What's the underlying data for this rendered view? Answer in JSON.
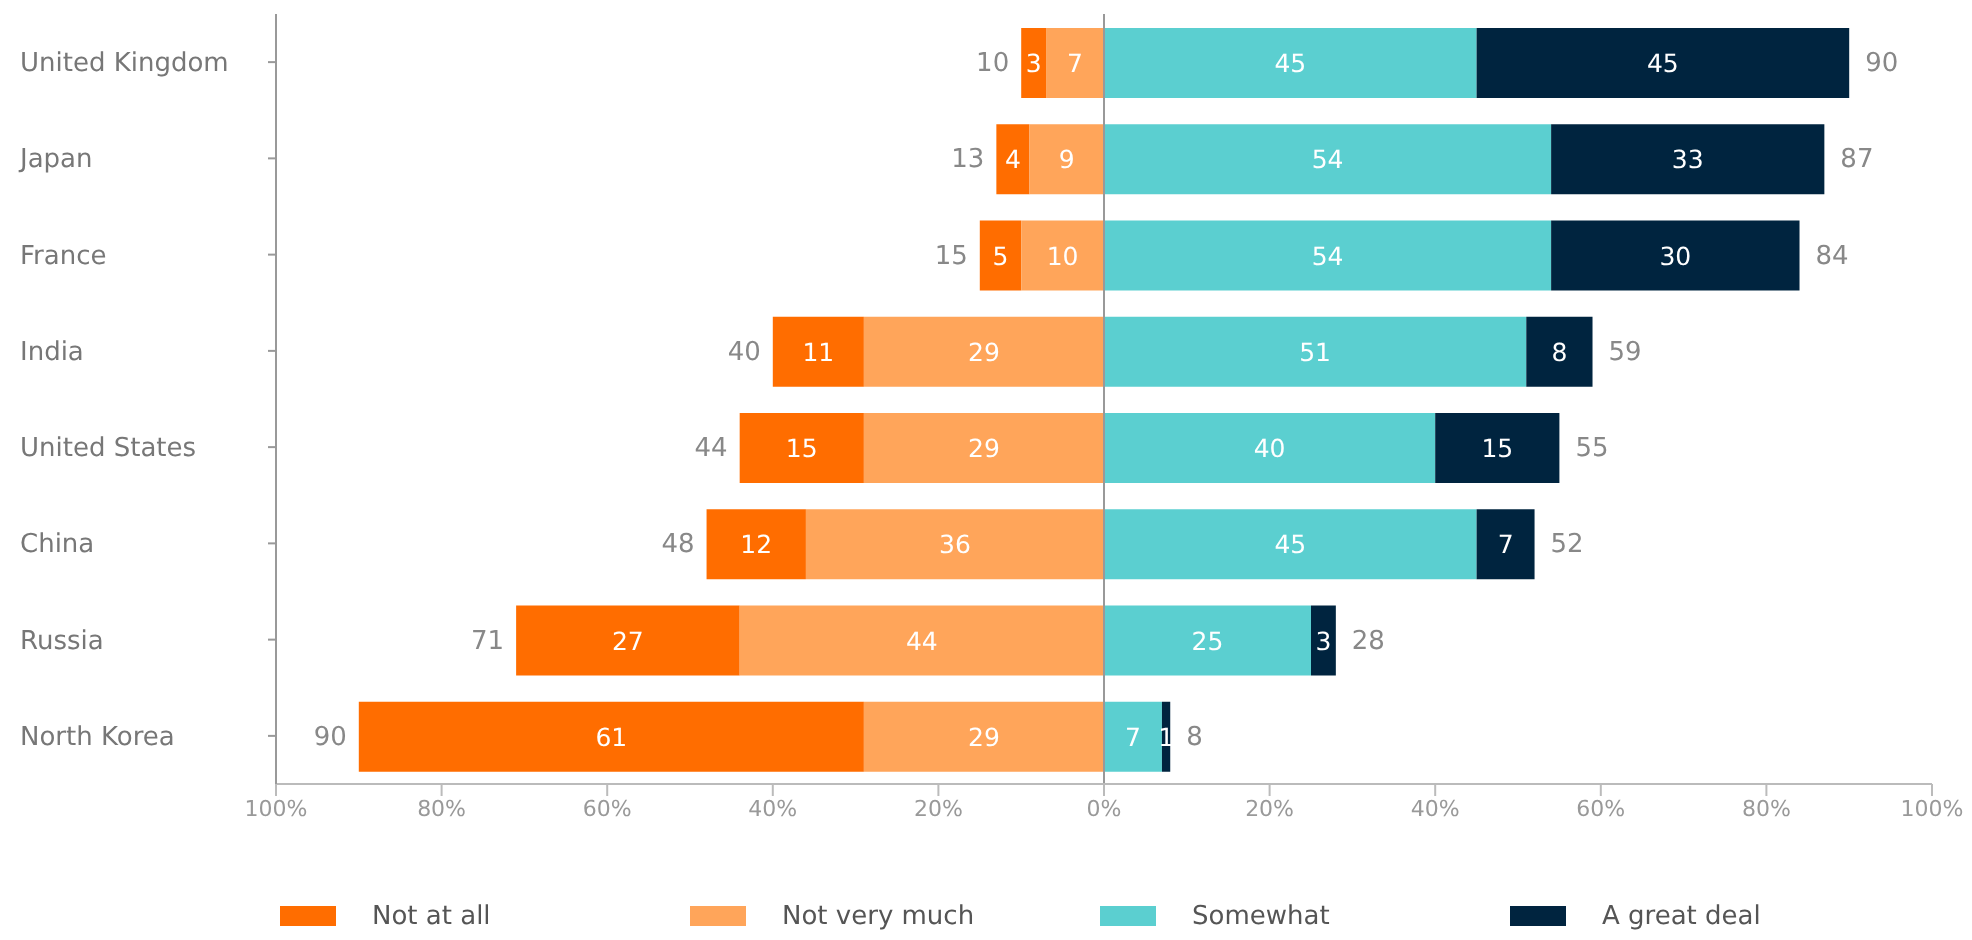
{
  "chart_data": {
    "type": "bar",
    "orientation": "horizontal",
    "categories": [
      "United Kingdom",
      "Japan",
      "France",
      "India",
      "United States",
      "China",
      "Russia",
      "North Korea"
    ],
    "series": [
      {
        "name": "Not at all",
        "color": "#ff6d00",
        "values": [
          3,
          4,
          5,
          11,
          15,
          12,
          27,
          61
        ],
        "base": [
          -10,
          -13,
          -15,
          -40,
          -44,
          -48,
          -71,
          -90
        ]
      },
      {
        "name": "Not very much",
        "color": "#ffa55a",
        "values": [
          7,
          9,
          10,
          29,
          29,
          36,
          44,
          29
        ],
        "base": [
          -7,
          -9,
          -10,
          -29,
          -29,
          -36,
          -44,
          -29
        ]
      },
      {
        "name": "Somewhat",
        "color": "#5bcfd0",
        "values": [
          45,
          54,
          54,
          51,
          40,
          45,
          25,
          7
        ],
        "base": [
          0,
          0,
          0,
          0,
          0,
          0,
          0,
          0
        ]
      },
      {
        "name": "A great deal",
        "color": "#00243f",
        "values": [
          45,
          33,
          30,
          8,
          15,
          7,
          3,
          1
        ],
        "base": [
          45,
          54,
          54,
          51,
          40,
          45,
          25,
          7
        ]
      }
    ],
    "data_labels": true,
    "xlim": [
      -100,
      100
    ],
    "xticks": [
      {
        "value": -100,
        "label": "100%"
      },
      {
        "value": -80,
        "label": "80%"
      },
      {
        "value": -60,
        "label": "60%"
      },
      {
        "value": -40,
        "label": "40%"
      },
      {
        "value": -20,
        "label": "20%"
      },
      {
        "value": 0,
        "label": "0%"
      },
      {
        "value": 20,
        "label": "20%"
      },
      {
        "value": 40,
        "label": "40%"
      },
      {
        "value": 60,
        "label": "60%"
      },
      {
        "value": 80,
        "label": "80%"
      },
      {
        "value": 100,
        "label": "100%"
      }
    ],
    "ref_lines": [
      {
        "axis": "x",
        "value": 0,
        "color": "#999999"
      }
    ],
    "annotations": [
      "10",
      "90",
      "13",
      "87",
      "15",
      "84",
      "40",
      "59",
      "44",
      "55",
      "48",
      "52",
      "71",
      "28",
      "90",
      "8"
    ],
    "legend": "bottom",
    "grid": false
  }
}
